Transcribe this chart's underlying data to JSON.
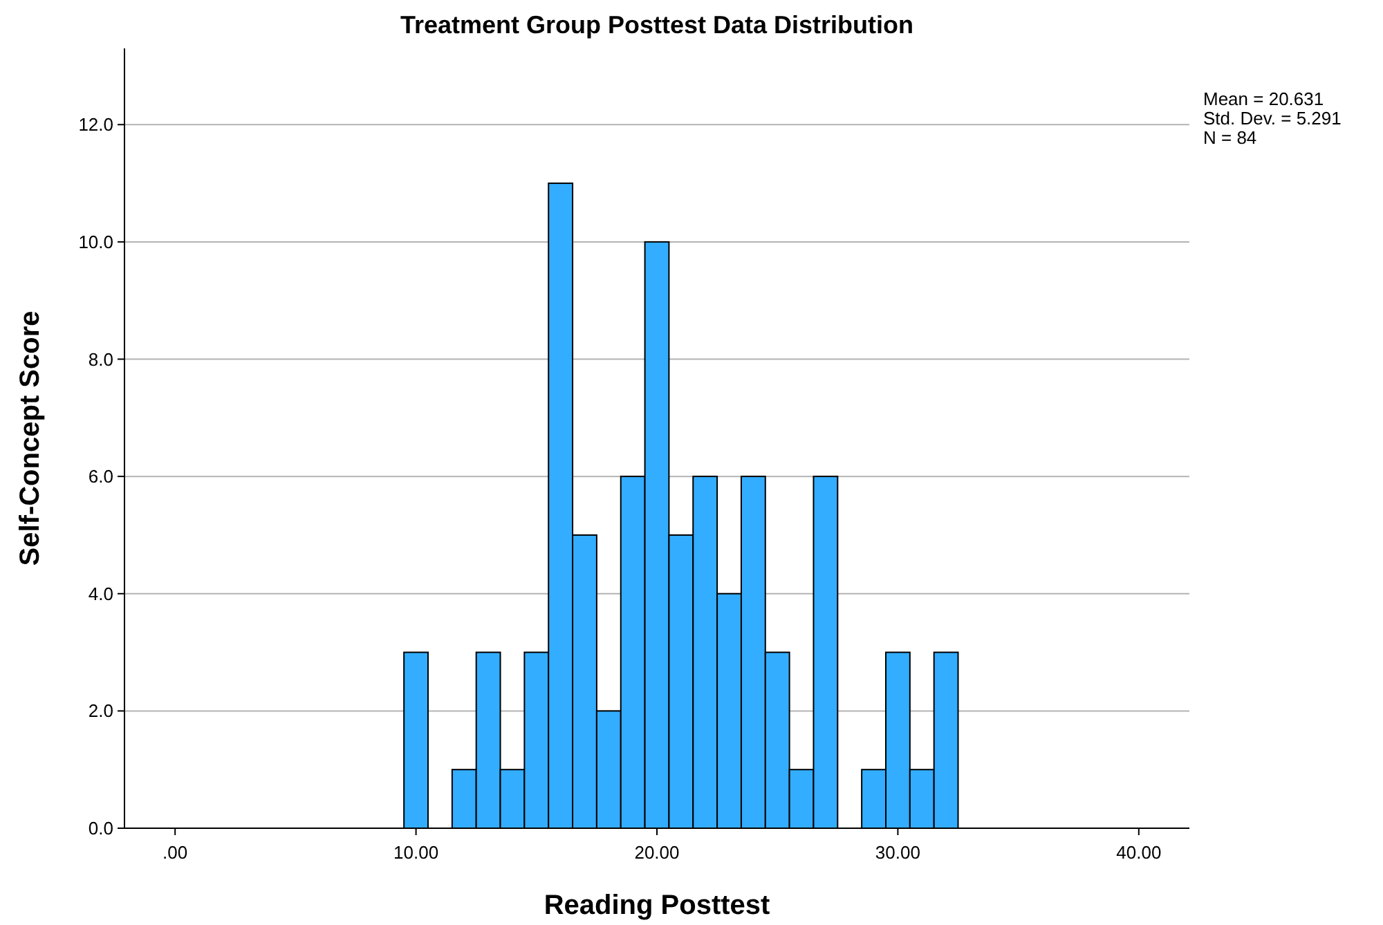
{
  "chart_data": {
    "type": "histogram",
    "title": "Treatment Group Posttest Data Distribution",
    "xlabel": "Reading Posttest",
    "ylabel": "Self-Concept Score",
    "bins": [
      9.5,
      10.5,
      11.5,
      12.5,
      13.5,
      14.5,
      15.5,
      16.5,
      17.5,
      18.5,
      19.5,
      20.5,
      21.5,
      22.5,
      23.5,
      24.5,
      25.5,
      26.5,
      27.5,
      28.5,
      29.5,
      30.5,
      31.5,
      32.5
    ],
    "values": [
      3,
      0,
      1,
      3,
      1,
      3,
      11,
      5,
      2,
      6,
      10,
      5,
      6,
      4,
      6,
      3,
      1,
      6,
      0,
      1,
      3,
      1,
      3
    ],
    "color": "#33adff",
    "xlim": [
      -2.1,
      42.1
    ],
    "xticks": [
      {
        "value": 0,
        "label": ".00"
      },
      {
        "value": 10,
        "label": "10.00"
      },
      {
        "value": 20,
        "label": "20.00"
      },
      {
        "value": 30,
        "label": "30.00"
      },
      {
        "value": 40,
        "label": "40.00"
      }
    ],
    "ylim": [
      0,
      13.3
    ],
    "yticks": [
      {
        "value": 0,
        "label": "0.0"
      },
      {
        "value": 2,
        "label": "2.0"
      },
      {
        "value": 4,
        "label": "4.0"
      },
      {
        "value": 6,
        "label": "6.0"
      },
      {
        "value": 8,
        "label": "8.0"
      },
      {
        "value": 10,
        "label": "10.0"
      },
      {
        "value": 12,
        "label": "12.0"
      }
    ],
    "grid": "y",
    "annotations": [
      "Mean = 20.631",
      "Std. Dev. = 5.291",
      "N = 84"
    ]
  }
}
